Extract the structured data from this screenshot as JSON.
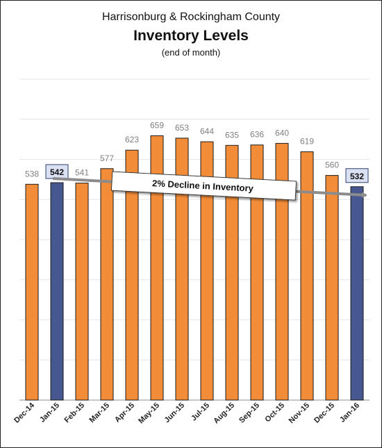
{
  "title": "Harrisonburg & Rockingham County",
  "subtitle": "Inventory Levels",
  "note": "(end of month)",
  "annotation": "2% Decline in Inventory",
  "colors": {
    "bar": "#f28c38",
    "highlight": "#46588f",
    "bar_edge": "#1a1a1a",
    "gridline": "#e6e6e6",
    "value_label": "#7f7f7f",
    "highlight_label_box": "#d9e1f2"
  },
  "chart_data": {
    "type": "bar",
    "title": "Inventory Levels",
    "xlabel": "",
    "ylabel": "",
    "categories": [
      "Dec-14",
      "Jan-15",
      "Feb-15",
      "Mar-15",
      "Apr-15",
      "May-15",
      "Jun-15",
      "Jul-15",
      "Aug-15",
      "Sep-15",
      "Oct-15",
      "Nov-15",
      "Dec-15",
      "Jan-16"
    ],
    "values": [
      538,
      542,
      541,
      577,
      623,
      659,
      653,
      644,
      635,
      636,
      640,
      619,
      560,
      532
    ],
    "highlighted": [
      "Jan-15",
      "Jan-16"
    ],
    "ylim": [
      0,
      800
    ],
    "grid": true,
    "data_labels": true
  }
}
